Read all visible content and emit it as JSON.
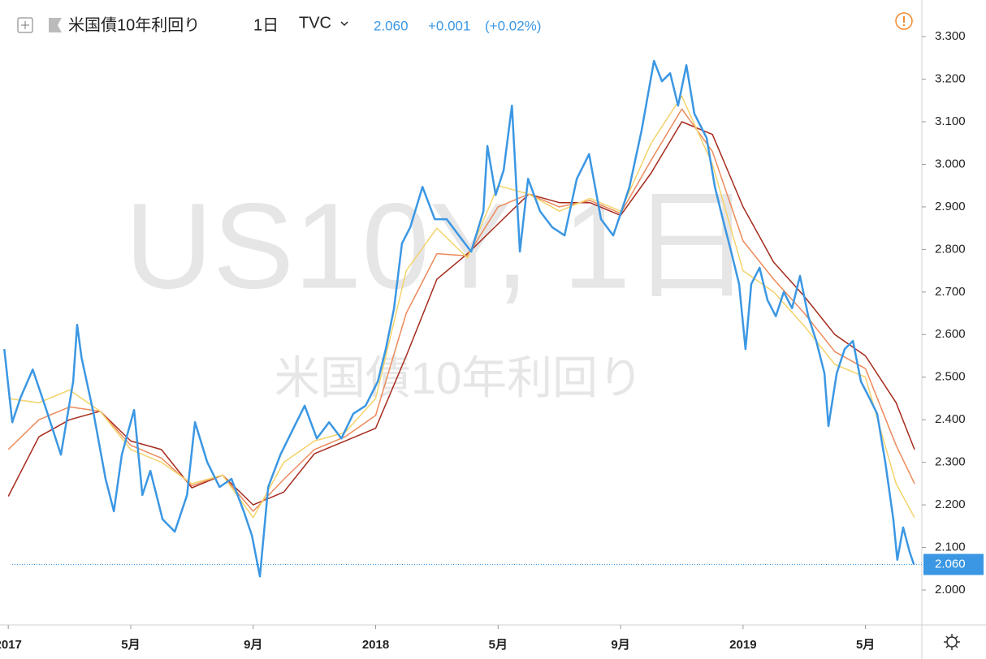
{
  "header": {
    "symbol_name": "米国債10年利回り",
    "interval": "1日",
    "exchange": "TVC",
    "last": "2.060",
    "change": "+0.001",
    "change_pct": "(+0.02%)"
  },
  "watermark": {
    "ticker": "US10Y, 1日",
    "name": "米国債10年利回り"
  },
  "chart_data": {
    "type": "line",
    "xlim": [
      -0.27,
      29.84
    ],
    "ylim": [
      1.918,
      3.386
    ],
    "xticks": [
      {
        "value": 0,
        "label": "2017"
      },
      {
        "value": 4,
        "label": "5月"
      },
      {
        "value": 8,
        "label": "9月"
      },
      {
        "value": 12,
        "label": "2018"
      },
      {
        "value": 16,
        "label": "5月"
      },
      {
        "value": 20,
        "label": "9月"
      },
      {
        "value": 24,
        "label": "2019"
      },
      {
        "value": 28,
        "label": "5月"
      }
    ],
    "yticks": [
      {
        "value": 2,
        "label": "2.000"
      },
      {
        "value": 2.1,
        "label": "2.100"
      },
      {
        "value": 2.2,
        "label": "2.200"
      },
      {
        "value": 2.3,
        "label": "2.300"
      },
      {
        "value": 2.4,
        "label": "2.400"
      },
      {
        "value": 2.5,
        "label": "2.500"
      },
      {
        "value": 2.6,
        "label": "2.600"
      },
      {
        "value": 2.7,
        "label": "2.700"
      },
      {
        "value": 2.8,
        "label": "2.800"
      },
      {
        "value": 2.9,
        "label": "2.900"
      },
      {
        "value": 3,
        "label": "3.000"
      },
      {
        "value": 3.1,
        "label": "3.100"
      },
      {
        "value": 3.2,
        "label": "3.200"
      },
      {
        "value": 3.3,
        "label": "3.300"
      }
    ],
    "series": [
      {
        "name": "US10Y",
        "color": "#3b97e3",
        "x": [
          -0.13,
          0.13,
          0.4,
          0.8,
          1.2,
          1.72,
          2.12,
          2.25,
          2.39,
          2.79,
          3.18,
          3.45,
          3.71,
          4.11,
          4.38,
          4.64,
          5.04,
          5.44,
          5.84,
          6.1,
          6.5,
          6.9,
          7.29,
          7.69,
          7.96,
          8.22,
          8.49,
          8.89,
          9.28,
          9.68,
          10.08,
          10.48,
          10.88,
          11.27,
          11.67,
          12.07,
          12.33,
          12.6,
          12.86,
          13.13,
          13.53,
          13.93,
          14.32,
          14.72,
          15.12,
          15.52,
          15.65,
          15.92,
          16.18,
          16.45,
          16.71,
          16.98,
          17.37,
          17.77,
          18.17,
          18.57,
          18.97,
          19.36,
          19.76,
          20.03,
          20.29,
          20.69,
          21.09,
          21.35,
          21.62,
          21.88,
          22.15,
          22.41,
          22.81,
          23.08,
          23.34,
          23.61,
          23.87,
          24.08,
          24.27,
          24.54,
          24.8,
          25.07,
          25.33,
          25.6,
          25.86,
          26.13,
          26.39,
          26.66,
          26.79,
          27.06,
          27.32,
          27.59,
          27.85,
          28.12,
          28.38,
          28.65,
          28.91,
          29.04,
          29.23,
          29.44,
          29.58
        ],
        "values": [
          2.566,
          2.394,
          2.452,
          2.518,
          2.433,
          2.318,
          2.49,
          2.623,
          2.547,
          2.414,
          2.261,
          2.185,
          2.318,
          2.423,
          2.223,
          2.28,
          2.166,
          2.137,
          2.223,
          2.394,
          2.3,
          2.242,
          2.261,
          2.185,
          2.128,
          2.032,
          2.242,
          2.318,
          2.375,
          2.433,
          2.356,
          2.394,
          2.356,
          2.414,
          2.433,
          2.49,
          2.566,
          2.661,
          2.814,
          2.852,
          2.947,
          2.871,
          2.871,
          2.833,
          2.795,
          2.89,
          3.043,
          2.928,
          2.986,
          3.138,
          2.795,
          2.966,
          2.89,
          2.852,
          2.833,
          2.966,
          3.024,
          2.871,
          2.833,
          2.89,
          2.947,
          3.081,
          3.243,
          3.195,
          3.214,
          3.138,
          3.233,
          3.119,
          3.062,
          2.947,
          2.871,
          2.795,
          2.719,
          2.566,
          2.719,
          2.757,
          2.681,
          2.643,
          2.7,
          2.662,
          2.738,
          2.643,
          2.585,
          2.509,
          2.385,
          2.509,
          2.566,
          2.585,
          2.49,
          2.452,
          2.414,
          2.299,
          2.166,
          2.071,
          2.147,
          2.09,
          2.06
        ]
      },
      {
        "color": "#f3d36a",
        "x": [
          0,
          1,
          2,
          3,
          4,
          5,
          6,
          7,
          8,
          9,
          10,
          11,
          12,
          13,
          14,
          15,
          16,
          17,
          18,
          19,
          20,
          21,
          22,
          23,
          24,
          25,
          26,
          27,
          28,
          29,
          29.6
        ],
        "values": [
          2.45,
          2.44,
          2.47,
          2.42,
          2.33,
          2.3,
          2.25,
          2.27,
          2.17,
          2.3,
          2.35,
          2.37,
          2.45,
          2.75,
          2.85,
          2.78,
          2.95,
          2.93,
          2.89,
          2.92,
          2.89,
          3.05,
          3.16,
          3,
          2.75,
          2.7,
          2.62,
          2.53,
          2.5,
          2.25,
          2.17
        ]
      },
      {
        "color": "#ec8a5c",
        "x": [
          0,
          1,
          2,
          3,
          4,
          5,
          6,
          7,
          8,
          9,
          10,
          11,
          12,
          13,
          14,
          15,
          16,
          17,
          18,
          19,
          20,
          21,
          22,
          23,
          24,
          25,
          26,
          27,
          28,
          29,
          29.6
        ],
        "values": [
          2.33,
          2.4,
          2.43,
          2.42,
          2.34,
          2.31,
          2.245,
          2.27,
          2.185,
          2.26,
          2.33,
          2.36,
          2.41,
          2.65,
          2.79,
          2.785,
          2.9,
          2.93,
          2.9,
          2.915,
          2.885,
          3.01,
          3.13,
          3.03,
          2.82,
          2.73,
          2.65,
          2.56,
          2.52,
          2.34,
          2.25
        ]
      },
      {
        "color": "#a52a1c",
        "x": [
          0,
          1,
          2,
          3,
          4,
          5,
          6,
          7,
          8,
          9,
          10,
          11,
          12,
          13,
          14,
          15,
          16,
          17,
          18,
          19,
          20,
          21,
          22,
          23,
          24,
          25,
          26,
          27,
          28,
          29,
          29.6
        ],
        "values": [
          2.22,
          2.36,
          2.4,
          2.42,
          2.35,
          2.33,
          2.24,
          2.27,
          2.2,
          2.23,
          2.32,
          2.35,
          2.38,
          2.55,
          2.73,
          2.79,
          2.86,
          2.93,
          2.91,
          2.91,
          2.88,
          2.98,
          3.1,
          3.07,
          2.9,
          2.77,
          2.69,
          2.6,
          2.55,
          2.44,
          2.33
        ]
      }
    ]
  }
}
